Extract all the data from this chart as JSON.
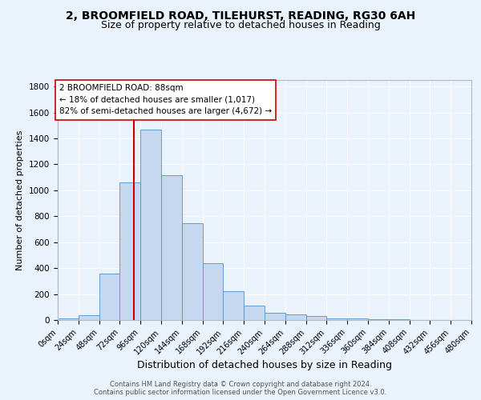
{
  "title1": "2, BROOMFIELD ROAD, TILEHURST, READING, RG30 6AH",
  "title2": "Size of property relative to detached houses in Reading",
  "xlabel": "Distribution of detached houses by size in Reading",
  "ylabel": "Number of detached properties",
  "bin_edges": [
    0,
    24,
    48,
    72,
    96,
    120,
    144,
    168,
    192,
    216,
    240,
    264,
    288,
    312,
    336,
    360,
    384,
    408,
    432,
    456,
    480
  ],
  "bar_heights": [
    10,
    35,
    355,
    1060,
    1470,
    1115,
    745,
    435,
    220,
    110,
    55,
    45,
    28,
    15,
    12,
    8,
    4,
    3,
    1,
    0
  ],
  "bar_color": "#c5d8f0",
  "bar_edge_color": "#5590c8",
  "property_size": 88,
  "vline_color": "#cc0000",
  "annotation_text": "2 BROOMFIELD ROAD: 88sqm\n← 18% of detached houses are smaller (1,017)\n82% of semi-detached houses are larger (4,672) →",
  "annotation_box_color": "#ffffff",
  "annotation_box_edge": "#cc0000",
  "footer1": "Contains HM Land Registry data © Crown copyright and database right 2024.",
  "footer2": "Contains public sector information licensed under the Open Government Licence v3.0.",
  "background_color": "#eaf2fb",
  "ylim": [
    0,
    1850
  ],
  "yticks": [
    0,
    200,
    400,
    600,
    800,
    1000,
    1200,
    1400,
    1600,
    1800
  ],
  "grid_color": "#ffffff",
  "title1_fontsize": 10,
  "title2_fontsize": 9,
  "xlabel_fontsize": 9,
  "ylabel_fontsize": 8,
  "xtick_fontsize": 7,
  "ytick_fontsize": 7.5,
  "tick_labels": [
    "0sqm",
    "24sqm",
    "48sqm",
    "72sqm",
    "96sqm",
    "120sqm",
    "144sqm",
    "168sqm",
    "192sqm",
    "216sqm",
    "240sqm",
    "264sqm",
    "288sqm",
    "312sqm",
    "336sqm",
    "360sqm",
    "384sqm",
    "408sqm",
    "432sqm",
    "456sqm",
    "480sqm"
  ],
  "footer_fontsize": 6,
  "annotation_fontsize": 7.5
}
